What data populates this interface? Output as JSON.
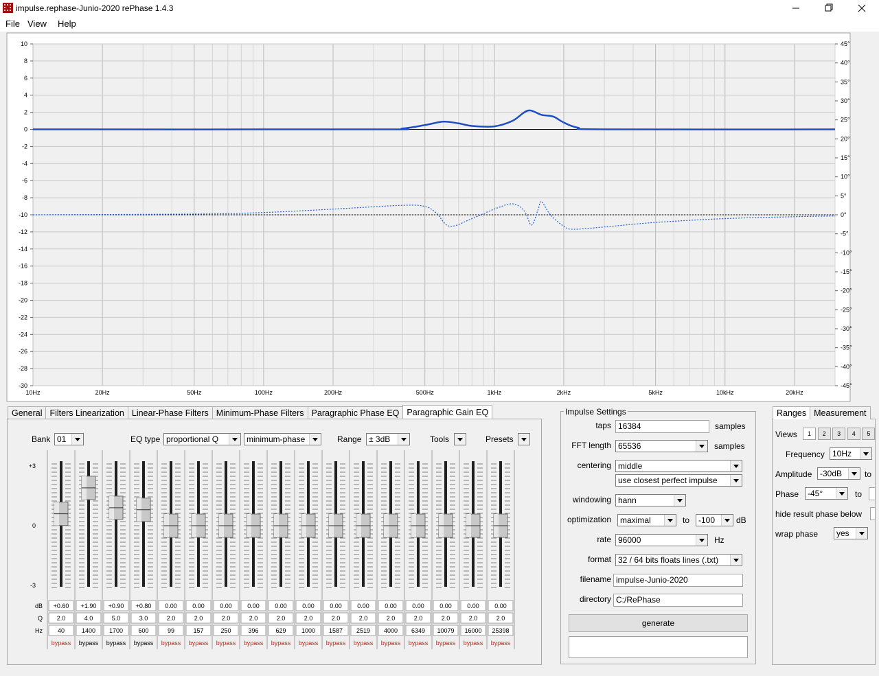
{
  "window": {
    "title": "impulse.rephase-Junio-2020  rePhase 1.4.3"
  },
  "menu": [
    "File",
    "View",
    "Help"
  ],
  "plot": {
    "xscale": "log",
    "xlim": [
      10,
      30000
    ],
    "xticks": [
      {
        "value": 10,
        "label": "10Hz"
      },
      {
        "value": 20,
        "label": "20Hz"
      },
      {
        "value": 50,
        "label": "50Hz"
      },
      {
        "value": 100,
        "label": "100Hz"
      },
      {
        "value": 200,
        "label": "200Hz"
      },
      {
        "value": 500,
        "label": "500Hz"
      },
      {
        "value": 1000,
        "label": "1kHz"
      },
      {
        "value": 2000,
        "label": "2kHz"
      },
      {
        "value": 5000,
        "label": "5kHz"
      },
      {
        "value": 10000,
        "label": "10kHz"
      },
      {
        "value": 20000,
        "label": "20kHz"
      }
    ],
    "ylim": [
      -30,
      10
    ],
    "yticks": [
      10,
      8,
      6,
      4,
      2,
      0,
      -2,
      -4,
      -6,
      -8,
      -10,
      -12,
      -14,
      -16,
      -18,
      -20,
      -22,
      -24,
      -26,
      -28,
      -30
    ],
    "y2lim": [
      -45,
      45
    ],
    "y2ticks": [
      {
        "value": 45,
        "label": "45°"
      },
      {
        "value": 40,
        "label": "40°"
      },
      {
        "value": 35,
        "label": "35°"
      },
      {
        "value": 30,
        "label": "30°"
      },
      {
        "value": 25,
        "label": "25°"
      },
      {
        "value": 20,
        "label": "20°"
      },
      {
        "value": 15,
        "label": "15°"
      },
      {
        "value": 10,
        "label": "10°"
      },
      {
        "value": 5,
        "label": "5°"
      },
      {
        "value": 0,
        "label": "0°"
      },
      {
        "value": -5,
        "label": "-5°"
      },
      {
        "value": -10,
        "label": "-10°"
      },
      {
        "value": -15,
        "label": "-15°"
      },
      {
        "value": -20,
        "label": "-20°"
      },
      {
        "value": -25,
        "label": "-25°"
      },
      {
        "value": -30,
        "label": "-30°"
      },
      {
        "value": -35,
        "label": "-35°"
      },
      {
        "value": -40,
        "label": "-40°"
      },
      {
        "value": -45,
        "label": "-45°"
      }
    ],
    "grid": true,
    "series": [
      {
        "color": "#1f4fbf",
        "style": "solid",
        "x": [
          10,
          300,
          400,
          500,
          600,
          700,
          800,
          1000,
          1200,
          1400,
          1600,
          1800,
          2000,
          2300,
          3000,
          30000
        ],
        "values": [
          0,
          0,
          0.1,
          0.5,
          0.9,
          0.7,
          0.4,
          0.35,
          1.0,
          2.2,
          1.7,
          1.5,
          0.8,
          0.2,
          0,
          0
        ]
      },
      {
        "color": "#1f5fd0",
        "style": "dotted",
        "axis": "y2",
        "x": [
          10,
          50,
          100,
          200,
          400,
          500,
          560,
          640,
          800,
          1000,
          1200,
          1350,
          1450,
          1550,
          1600,
          1750,
          2000,
          2200,
          3000,
          5000,
          10000,
          20000,
          30000
        ],
        "values": [
          0,
          0.2,
          0.6,
          1.5,
          2.5,
          2.2,
          0.5,
          -3,
          -1,
          1.5,
          2.9,
          1.0,
          -2.7,
          1.5,
          3.5,
          0,
          -3,
          -3.8,
          -3.2,
          -2,
          -1,
          -0.5,
          -0.3
        ]
      }
    ]
  },
  "tabs": [
    "General",
    "Filters Linearization",
    "Linear-Phase Filters",
    "Minimum-Phase Filters",
    "Paragraphic Phase EQ",
    "Paragraphic Gain EQ"
  ],
  "active_tab": 5,
  "eq": {
    "bank_label": "Bank",
    "bank": "01",
    "eq_type_label": "EQ type",
    "eq_type": "proportional Q",
    "phase_mode": "minimum-phase",
    "range_label": "Range",
    "range": "± 3dB",
    "tools": "Tools",
    "presets": "Presets",
    "slider_ticks": [
      {
        "value": 3,
        "label": "+3"
      },
      0,
      -3
    ],
    "row_labels": [
      "dB",
      "Q",
      "Hz"
    ],
    "values": [
      0.6,
      1.9,
      0.9,
      0.8,
      0,
      0,
      0,
      0,
      0,
      0,
      0,
      0,
      0,
      0,
      0,
      0,
      0
    ],
    "value_labels": [
      "+0.60",
      "+1.90",
      "+0.90",
      "+0.80",
      "0.00",
      "0.00",
      "0.00",
      "0.00",
      "0.00",
      "0.00",
      "0.00",
      "0.00",
      "0.00",
      "0.00",
      "0.00",
      "0.00",
      "0.00"
    ],
    "q": [
      "2.0",
      "4.0",
      "5.0",
      "3.0",
      "2.0",
      "2.0",
      "2.0",
      "2.0",
      "2.0",
      "2.0",
      "2.0",
      "2.0",
      "2.0",
      "2.0",
      "2.0",
      "2.0",
      "2.0"
    ],
    "hz": [
      "40",
      "1400",
      "1700",
      "600",
      "99",
      "157",
      "250",
      "396",
      "629",
      "1000",
      "1587",
      "2519",
      "4000",
      "6349",
      "10079",
      "16000",
      "25398"
    ],
    "bypass": [
      {
        "label": "bypass",
        "color": "#d02020"
      },
      {
        "label": "bypass",
        "color": "#000000"
      },
      {
        "label": "bypass",
        "color": "#000000"
      },
      {
        "label": "bypass",
        "color": "#000000"
      },
      {
        "label": "bypass",
        "color": "#d02020"
      },
      {
        "label": "bypass",
        "color": "#d02020"
      },
      {
        "label": "bypass",
        "color": "#d02020"
      },
      {
        "label": "bypass",
        "color": "#d02020"
      },
      {
        "label": "bypass",
        "color": "#d02020"
      },
      {
        "label": "bypass",
        "color": "#d02020"
      },
      {
        "label": "bypass",
        "color": "#d02020"
      },
      {
        "label": "bypass",
        "color": "#d02020"
      },
      {
        "label": "bypass",
        "color": "#d02020"
      },
      {
        "label": "bypass",
        "color": "#d02020"
      },
      {
        "label": "bypass",
        "color": "#d02020"
      },
      {
        "label": "bypass",
        "color": "#d02020"
      },
      {
        "label": "bypass",
        "color": "#d02020"
      }
    ]
  },
  "impulse": {
    "title": "Impulse Settings",
    "taps_label": "taps",
    "taps": "16384",
    "taps_unit": "samples",
    "fft_label": "FFT length",
    "fft": "65536",
    "fft_unit": "samples",
    "centering_label": "centering",
    "centering": "middle",
    "centering_mode": "use closest perfect impulse",
    "windowing_label": "windowing",
    "windowing": "hann",
    "optimization_label": "optimization",
    "optimization": "maximal",
    "optimization_to": "to",
    "optimization_limit": "-100",
    "optimization_unit": "dB",
    "rate_label": "rate",
    "rate": "96000",
    "rate_unit": "Hz",
    "format_label": "format",
    "format": "32 / 64 bits floats lines (.txt)",
    "filename_label": "filename",
    "filename": "impulse-Junio-2020",
    "directory_label": "directory",
    "directory": "C:/RePhase",
    "generate": "generate"
  },
  "ranges": {
    "tabs": [
      "Ranges",
      "Measurement"
    ],
    "views_label": "Views",
    "views": [
      "1",
      "2",
      "3",
      "4",
      "5"
    ],
    "frequency_label": "Frequency",
    "frequency": "10Hz",
    "amplitude_label": "Amplitude",
    "amplitude": "-30dB",
    "amplitude_to": "to",
    "phase_label": "Phase",
    "phase": "-45°",
    "phase_to": "to",
    "hide_label": "hide result phase below",
    "wrap_label": "wrap phase",
    "wrap": "yes"
  }
}
